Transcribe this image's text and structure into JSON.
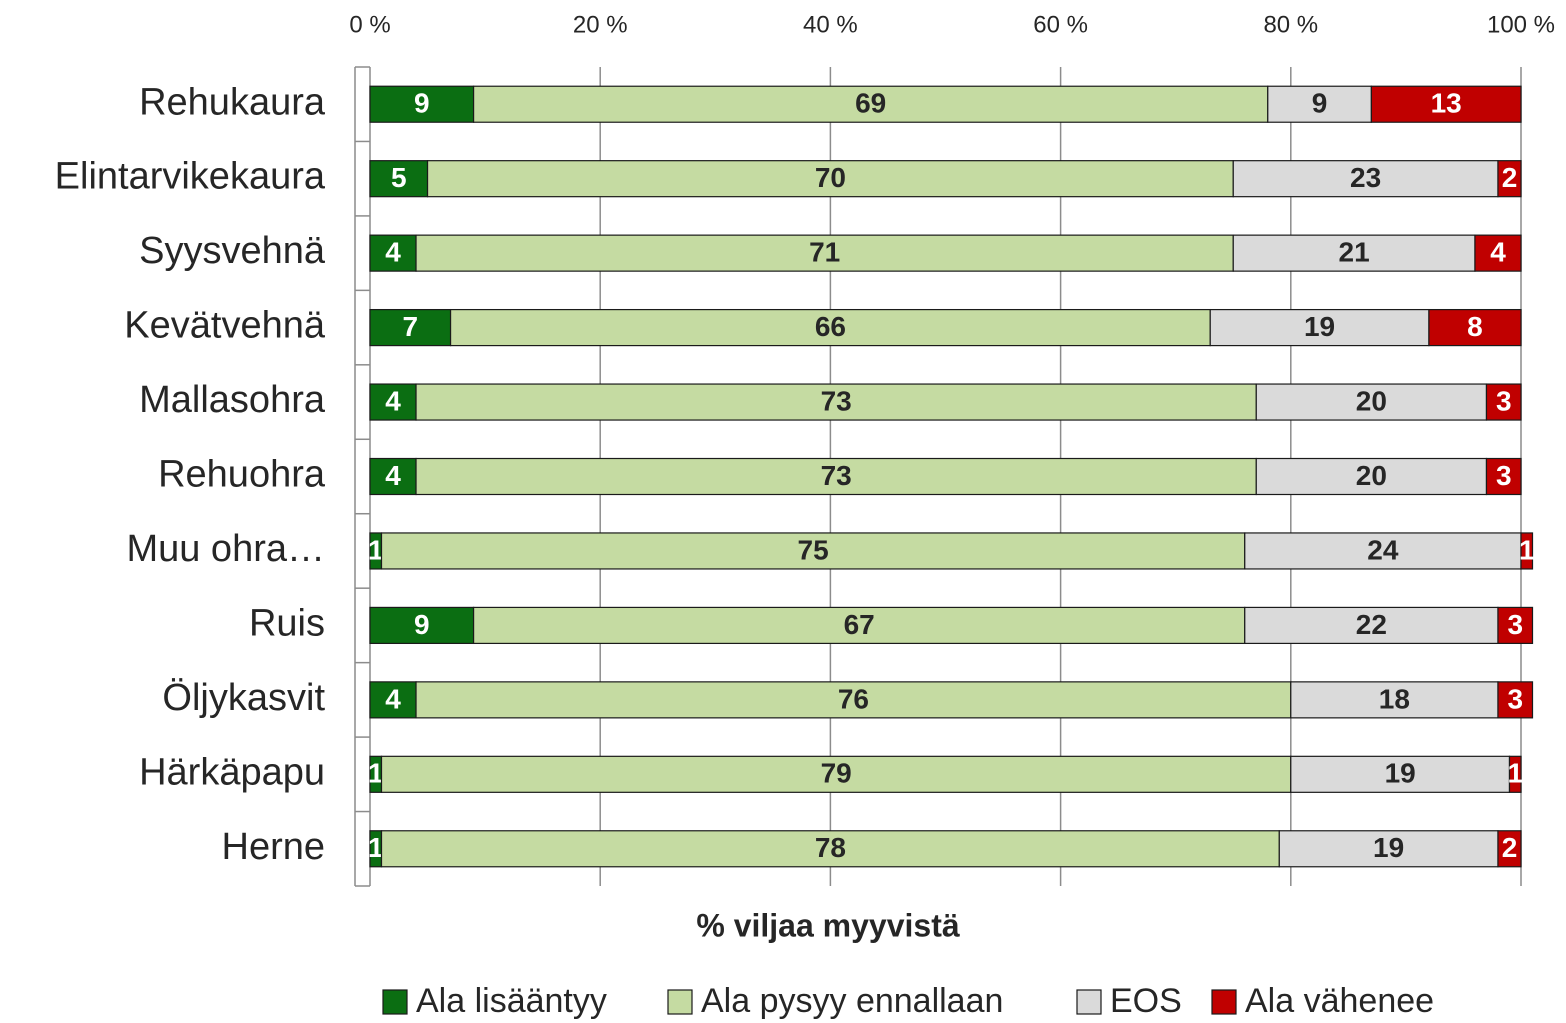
{
  "chart_data": {
    "type": "stacked-barh",
    "x_label": "% viljaa myyvistä",
    "categories": [
      "Rehukaura",
      "Elintarvikekaura",
      "Syysvehnä",
      "Kevätvehnä",
      "Mallasohra",
      "Rehuohra",
      "Muu ohra…",
      "Ruis",
      "Öljykasvit",
      "Härkäpapu",
      "Herne"
    ],
    "series": [
      {
        "name": "Ala lisääntyy",
        "color": "#0b6e12",
        "label_color": "#ffffff",
        "values": [
          9,
          5,
          4,
          7,
          4,
          4,
          1,
          9,
          4,
          1,
          1
        ]
      },
      {
        "name": "Ala pysyy ennallaan",
        "color": "#c5dba2",
        "label_color": "#262626",
        "values": [
          69,
          70,
          71,
          66,
          73,
          73,
          75,
          67,
          76,
          79,
          78
        ]
      },
      {
        "name": "EOS",
        "color": "#dadada",
        "label_color": "#262626",
        "values": [
          9,
          23,
          21,
          19,
          20,
          20,
          24,
          22,
          18,
          19,
          19
        ]
      },
      {
        "name": "Ala vähenee",
        "color": "#c00000",
        "label_color": "#ffffff",
        "values": [
          13,
          2,
          4,
          8,
          3,
          3,
          1,
          3,
          3,
          1,
          2
        ]
      }
    ],
    "xlim": [
      0,
      100
    ],
    "xticks": [
      {
        "value": 0,
        "label": "0 %"
      },
      {
        "value": 20,
        "label": "20 %"
      },
      {
        "value": 40,
        "label": "40 %"
      },
      {
        "value": 60,
        "label": "60 %"
      },
      {
        "value": 80,
        "label": "80 %"
      },
      {
        "value": 100,
        "label": "100 %"
      }
    ],
    "grid": true,
    "legend": "bottom"
  }
}
